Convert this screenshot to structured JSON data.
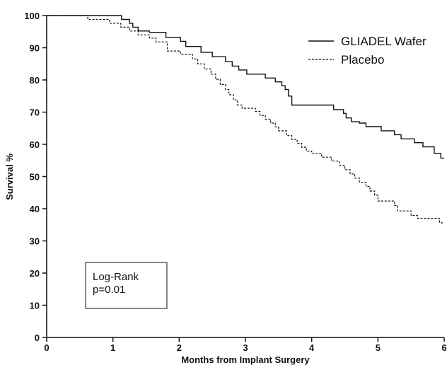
{
  "chart_data": {
    "type": "line",
    "title": "",
    "xlabel": "Months from Implant Surgery",
    "ylabel": "Survival %",
    "xlim": [
      0,
      6
    ],
    "ylim": [
      0,
      100
    ],
    "xticks": [
      0,
      1,
      2,
      3,
      4,
      5,
      6
    ],
    "yticks": [
      0,
      10,
      20,
      30,
      40,
      50,
      60,
      70,
      80,
      90,
      100
    ],
    "grid": false,
    "step": true,
    "legend_position": "top-right",
    "annotation": {
      "line1": "Log-Rank",
      "line2": "p=0.01"
    },
    "series": [
      {
        "name": "GLIADEL Wafer",
        "style": "solid",
        "points": [
          [
            0,
            100
          ],
          [
            1.13,
            100
          ],
          [
            1.13,
            98.8
          ],
          [
            1.25,
            98.8
          ],
          [
            1.25,
            97.6
          ],
          [
            1.3,
            97.6
          ],
          [
            1.3,
            96.4
          ],
          [
            1.38,
            96.4
          ],
          [
            1.38,
            95.2
          ],
          [
            1.55,
            95.2
          ],
          [
            1.55,
            94.8
          ],
          [
            1.8,
            94.8
          ],
          [
            1.8,
            93.2
          ],
          [
            2.02,
            93.2
          ],
          [
            2.02,
            92.0
          ],
          [
            2.1,
            92.0
          ],
          [
            2.1,
            90.4
          ],
          [
            2.33,
            90.4
          ],
          [
            2.33,
            88.6
          ],
          [
            2.5,
            88.6
          ],
          [
            2.5,
            87.2
          ],
          [
            2.7,
            87.2
          ],
          [
            2.7,
            85.7
          ],
          [
            2.8,
            85.7
          ],
          [
            2.8,
            84.3
          ],
          [
            2.9,
            84.3
          ],
          [
            2.9,
            83.1
          ],
          [
            3.02,
            83.1
          ],
          [
            3.02,
            81.8
          ],
          [
            3.3,
            81.8
          ],
          [
            3.3,
            80.6
          ],
          [
            3.45,
            80.6
          ],
          [
            3.45,
            79.4
          ],
          [
            3.55,
            79.4
          ],
          [
            3.55,
            78.2
          ],
          [
            3.6,
            78.2
          ],
          [
            3.6,
            77.0
          ],
          [
            3.65,
            77.0
          ],
          [
            3.65,
            75.0
          ],
          [
            3.7,
            75.0
          ],
          [
            3.7,
            72.2
          ],
          [
            4.33,
            72.2
          ],
          [
            4.33,
            70.8
          ],
          [
            4.48,
            70.8
          ],
          [
            4.48,
            69.6
          ],
          [
            4.52,
            69.6
          ],
          [
            4.52,
            68.2
          ],
          [
            4.6,
            68.2
          ],
          [
            4.6,
            67.0
          ],
          [
            4.72,
            67.0
          ],
          [
            4.72,
            66.6
          ],
          [
            4.82,
            66.6
          ],
          [
            4.82,
            65.5
          ],
          [
            5.05,
            65.5
          ],
          [
            5.05,
            64.2
          ],
          [
            5.25,
            64.2
          ],
          [
            5.25,
            63.0
          ],
          [
            5.35,
            63.0
          ],
          [
            5.35,
            61.7
          ],
          [
            5.55,
            61.7
          ],
          [
            5.55,
            60.5
          ],
          [
            5.68,
            60.5
          ],
          [
            5.68,
            59.2
          ],
          [
            5.85,
            59.2
          ],
          [
            5.85,
            57.2
          ],
          [
            5.95,
            57.2
          ],
          [
            5.95,
            55.7
          ],
          [
            6.0,
            55.7
          ]
        ]
      },
      {
        "name": "Placebo",
        "style": "dashed",
        "points": [
          [
            0,
            100
          ],
          [
            0.62,
            100
          ],
          [
            0.62,
            98.8
          ],
          [
            0.95,
            98.8
          ],
          [
            0.95,
            97.6
          ],
          [
            1.12,
            97.6
          ],
          [
            1.12,
            96.4
          ],
          [
            1.25,
            96.4
          ],
          [
            1.25,
            95.2
          ],
          [
            1.38,
            95.2
          ],
          [
            1.38,
            94.0
          ],
          [
            1.55,
            94.0
          ],
          [
            1.55,
            93.0
          ],
          [
            1.65,
            93.0
          ],
          [
            1.65,
            91.8
          ],
          [
            1.82,
            91.8
          ],
          [
            1.82,
            89.0
          ],
          [
            2.02,
            89.0
          ],
          [
            2.02,
            88.0
          ],
          [
            2.2,
            88.0
          ],
          [
            2.2,
            86.5
          ],
          [
            2.28,
            86.5
          ],
          [
            2.28,
            85.0
          ],
          [
            2.38,
            85.0
          ],
          [
            2.38,
            83.4
          ],
          [
            2.48,
            83.4
          ],
          [
            2.48,
            81.8
          ],
          [
            2.55,
            81.8
          ],
          [
            2.55,
            80.2
          ],
          [
            2.62,
            80.2
          ],
          [
            2.62,
            78.6
          ],
          [
            2.7,
            78.6
          ],
          [
            2.7,
            77.0
          ],
          [
            2.75,
            77.0
          ],
          [
            2.75,
            75.4
          ],
          [
            2.82,
            75.4
          ],
          [
            2.82,
            73.8
          ],
          [
            2.88,
            73.8
          ],
          [
            2.88,
            72.2
          ],
          [
            2.95,
            72.2
          ],
          [
            2.95,
            71.2
          ],
          [
            3.15,
            71.2
          ],
          [
            3.15,
            70.2
          ],
          [
            3.22,
            70.2
          ],
          [
            3.22,
            69.0
          ],
          [
            3.3,
            69.0
          ],
          [
            3.3,
            67.8
          ],
          [
            3.38,
            67.8
          ],
          [
            3.38,
            66.6
          ],
          [
            3.45,
            66.6
          ],
          [
            3.45,
            65.4
          ],
          [
            3.5,
            65.4
          ],
          [
            3.5,
            64.2
          ],
          [
            3.62,
            64.2
          ],
          [
            3.62,
            62.7
          ],
          [
            3.7,
            62.7
          ],
          [
            3.7,
            61.5
          ],
          [
            3.78,
            61.5
          ],
          [
            3.78,
            60.3
          ],
          [
            3.85,
            60.3
          ],
          [
            3.85,
            59.1
          ],
          [
            3.92,
            59.1
          ],
          [
            3.92,
            57.9
          ],
          [
            4.0,
            57.9
          ],
          [
            4.0,
            57.2
          ],
          [
            4.15,
            57.2
          ],
          [
            4.15,
            56.0
          ],
          [
            4.3,
            56.0
          ],
          [
            4.3,
            54.8
          ],
          [
            4.42,
            54.8
          ],
          [
            4.42,
            53.5
          ],
          [
            4.5,
            53.5
          ],
          [
            4.5,
            52.1
          ],
          [
            4.58,
            52.1
          ],
          [
            4.58,
            50.8
          ],
          [
            4.65,
            50.8
          ],
          [
            4.65,
            49.5
          ],
          [
            4.72,
            49.5
          ],
          [
            4.72,
            48.2
          ],
          [
            4.82,
            48.2
          ],
          [
            4.82,
            46.9
          ],
          [
            4.88,
            46.9
          ],
          [
            4.88,
            45.5
          ],
          [
            4.95,
            45.5
          ],
          [
            4.95,
            44.2
          ],
          [
            5.0,
            44.2
          ],
          [
            5.0,
            42.4
          ],
          [
            5.25,
            42.4
          ],
          [
            5.25,
            41.0
          ],
          [
            5.3,
            41.0
          ],
          [
            5.3,
            39.3
          ],
          [
            5.5,
            39.3
          ],
          [
            5.5,
            37.9
          ],
          [
            5.6,
            37.9
          ],
          [
            5.6,
            37.0
          ],
          [
            5.93,
            37.0
          ],
          [
            5.93,
            35.6
          ],
          [
            6.0,
            35.6
          ]
        ]
      }
    ]
  }
}
